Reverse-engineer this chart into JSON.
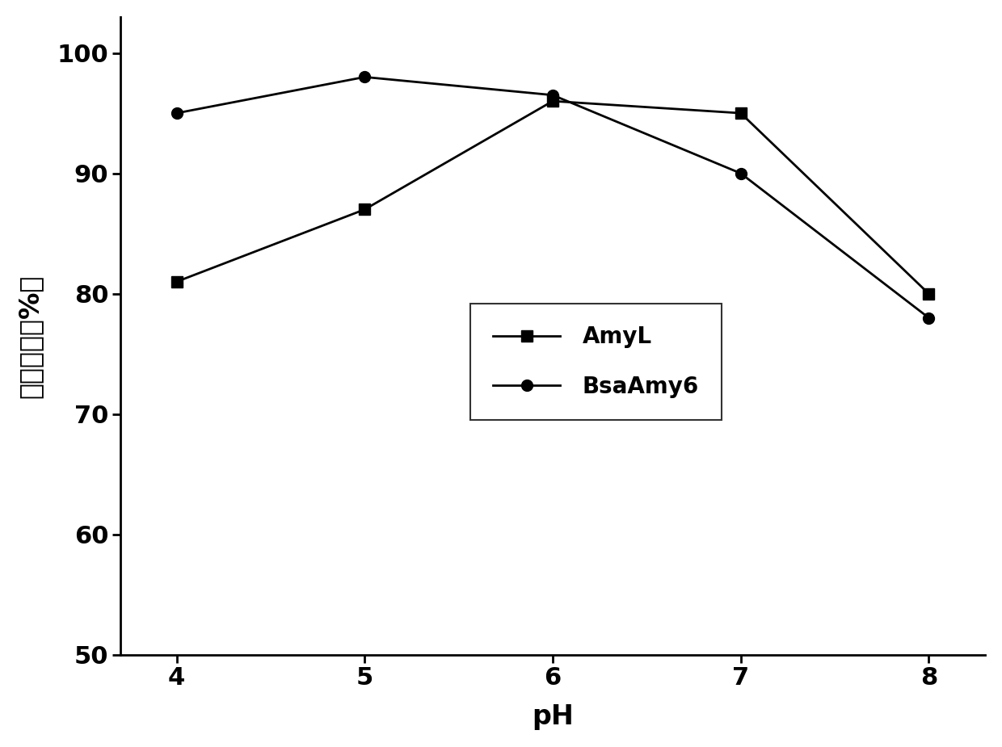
{
  "ph_values": [
    4,
    5,
    6,
    7,
    8
  ],
  "amyL_values": [
    81.0,
    87.0,
    96.0,
    95.0,
    80.0
  ],
  "bsaAmy6_values": [
    95.0,
    98.0,
    96.5,
    90.0,
    78.0
  ],
  "amyL_label": "AmyL",
  "bsaAmy6_label": "BsaAmy6",
  "xlabel": "pH",
  "ylabel": "剩余酶活（%）",
  "ylim": [
    50,
    103
  ],
  "xlim": [
    3.7,
    8.3
  ],
  "yticks": [
    50,
    60,
    70,
    80,
    90,
    100
  ],
  "xticks": [
    4,
    5,
    6,
    7,
    8
  ],
  "line_color": "#000000",
  "marker_square": "s",
  "marker_circle": "o",
  "marker_size": 10,
  "linewidth": 2.0,
  "legend_fontsize": 20,
  "axis_label_fontsize": 24,
  "tick_fontsize": 22,
  "background_color": "#ffffff"
}
